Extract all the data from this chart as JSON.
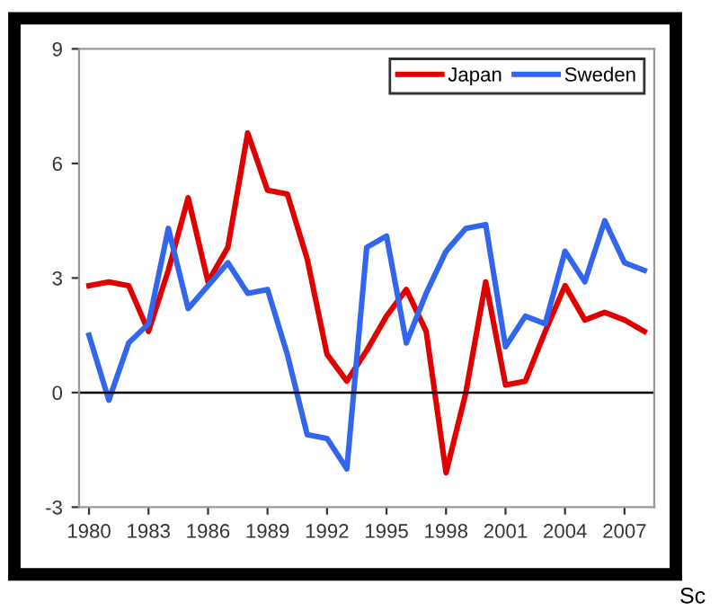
{
  "chart_data": {
    "type": "line",
    "x": [
      1980,
      1981,
      1982,
      1983,
      1984,
      1985,
      1986,
      1987,
      1988,
      1989,
      1990,
      1991,
      1992,
      1993,
      1994,
      1995,
      1996,
      1997,
      1998,
      1999,
      2000,
      2001,
      2002,
      2003,
      2004,
      2005,
      2006,
      2007,
      2008
    ],
    "series": [
      {
        "name": "Japan",
        "color": "#e00000",
        "values": [
          2.8,
          2.9,
          2.8,
          1.6,
          3.2,
          5.1,
          2.9,
          3.8,
          6.8,
          5.3,
          5.2,
          3.5,
          1.0,
          0.3,
          1.1,
          2.0,
          2.7,
          1.6,
          -2.1,
          0.0,
          2.9,
          0.2,
          0.3,
          1.6,
          2.8,
          1.9,
          2.1,
          1.9,
          1.6
        ]
      },
      {
        "name": "Sweden",
        "color": "#3366ee",
        "values": [
          1.5,
          -0.2,
          1.3,
          1.8,
          4.3,
          2.2,
          2.8,
          3.4,
          2.6,
          2.7,
          1.0,
          -1.1,
          -1.2,
          -2.0,
          3.8,
          4.1,
          1.3,
          2.6,
          3.7,
          4.3,
          4.4,
          1.2,
          2.0,
          1.8,
          3.7,
          2.9,
          4.5,
          3.4,
          3.2
        ]
      }
    ],
    "xlim": [
      1979.5,
      2008.5
    ],
    "xticks": [
      1980,
      1983,
      1986,
      1989,
      1992,
      1995,
      1998,
      2001,
      2004,
      2007
    ],
    "ylim": [
      -3,
      9
    ],
    "yticks": [
      -3,
      0,
      3,
      6,
      9
    ],
    "ref_lines": [
      {
        "axis": "y",
        "value": 0,
        "color": "#000000"
      }
    ],
    "grid": false,
    "legend": "top right",
    "marker": "none",
    "line_style": "solid",
    "annotations": [
      "Sc"
    ]
  }
}
